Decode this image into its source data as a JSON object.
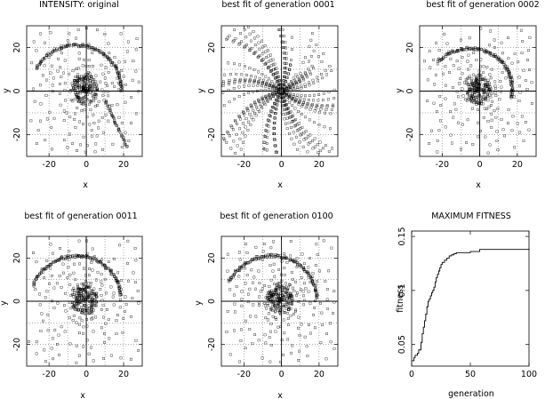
{
  "chart_data": [
    {
      "type": "scatter",
      "title": "INTENSITY: original",
      "xlabel": "x",
      "ylabel": "y",
      "xlim": [
        -32,
        30
      ],
      "ylim": [
        -30,
        30
      ],
      "xticks": [
        -20,
        0,
        20
      ],
      "yticks": [
        -20,
        0,
        20
      ],
      "grid": true,
      "marker": "open-square",
      "spiral": {
        "disk_extent": 28,
        "arm_radius": 26,
        "arm_from_deg": 0,
        "arm_to_deg": 150,
        "variant": "original"
      }
    },
    {
      "type": "scatter",
      "title": "best fit of generation 0001",
      "xlabel": "x",
      "ylabel": "y",
      "xlim": [
        -32,
        30
      ],
      "ylim": [
        -30,
        30
      ],
      "xticks": [
        -20,
        0,
        20
      ],
      "yticks": [
        -20,
        0,
        20
      ],
      "grid": true,
      "marker": "open-square",
      "spiral": {
        "disk_extent": 28,
        "arm_radius": 0,
        "arm_from_deg": 0,
        "arm_to_deg": 0,
        "variant": "fan"
      }
    },
    {
      "type": "scatter",
      "title": "best fit of generation 0002",
      "xlabel": "x",
      "ylabel": "y",
      "xlim": [
        -32,
        30
      ],
      "ylim": [
        -30,
        30
      ],
      "xticks": [
        -20,
        0,
        20
      ],
      "yticks": [
        -20,
        0,
        20
      ],
      "grid": true,
      "marker": "open-square",
      "spiral": {
        "disk_extent": 28,
        "arm_radius": 24,
        "arm_from_deg": -10,
        "arm_to_deg": 140,
        "variant": "spiral"
      }
    },
    {
      "type": "scatter",
      "title": "best fit of generation 0011",
      "xlabel": "x",
      "ylabel": "y",
      "xlim": [
        -32,
        30
      ],
      "ylim": [
        -30,
        30
      ],
      "xticks": [
        -20,
        0,
        20
      ],
      "yticks": [
        -20,
        0,
        20
      ],
      "grid": true,
      "marker": "open-square",
      "spiral": {
        "disk_extent": 28,
        "arm_radius": 26,
        "arm_from_deg": 10,
        "arm_to_deg": 160,
        "variant": "spiral"
      }
    },
    {
      "type": "scatter",
      "title": "best fit of generation 0100",
      "xlabel": "x",
      "ylabel": "y",
      "xlim": [
        -32,
        30
      ],
      "ylim": [
        -30,
        30
      ],
      "xticks": [
        -20,
        0,
        20
      ],
      "yticks": [
        -20,
        0,
        20
      ],
      "grid": true,
      "marker": "open-square",
      "spiral": {
        "disk_extent": 28,
        "arm_radius": 26,
        "arm_from_deg": 5,
        "arm_to_deg": 155,
        "variant": "spiral"
      }
    },
    {
      "type": "line",
      "title": "MAXIMUM FITNESS",
      "xlabel": "generation",
      "ylabel": "fitness",
      "xlim": [
        0,
        100
      ],
      "ylim": [
        0.03,
        0.155
      ],
      "xticks": [
        0,
        50,
        100
      ],
      "yticks": [
        0.05,
        0.1,
        0.15
      ],
      "ytick_labels": [
        "0.05",
        "0.1",
        "0.15"
      ],
      "grid": false,
      "x": [
        0,
        2,
        3,
        5,
        6,
        8,
        9,
        10,
        11,
        12,
        13,
        14,
        15,
        16,
        17,
        18,
        19,
        20,
        21,
        22,
        23,
        24,
        25,
        26,
        28,
        30,
        32,
        34,
        36,
        38,
        40,
        45,
        50,
        55,
        58,
        60,
        70,
        80,
        90,
        100
      ],
      "y": [
        0.035,
        0.038,
        0.04,
        0.042,
        0.045,
        0.052,
        0.06,
        0.066,
        0.072,
        0.078,
        0.085,
        0.09,
        0.092,
        0.095,
        0.098,
        0.1,
        0.103,
        0.108,
        0.112,
        0.115,
        0.118,
        0.121,
        0.124,
        0.126,
        0.128,
        0.13,
        0.132,
        0.133,
        0.134,
        0.135,
        0.135,
        0.135,
        0.136,
        0.136,
        0.138,
        0.138,
        0.138,
        0.138,
        0.138,
        0.139
      ]
    }
  ],
  "colors": {
    "ink": "#000000",
    "grid": "#555555",
    "background": "#ffffff"
  }
}
